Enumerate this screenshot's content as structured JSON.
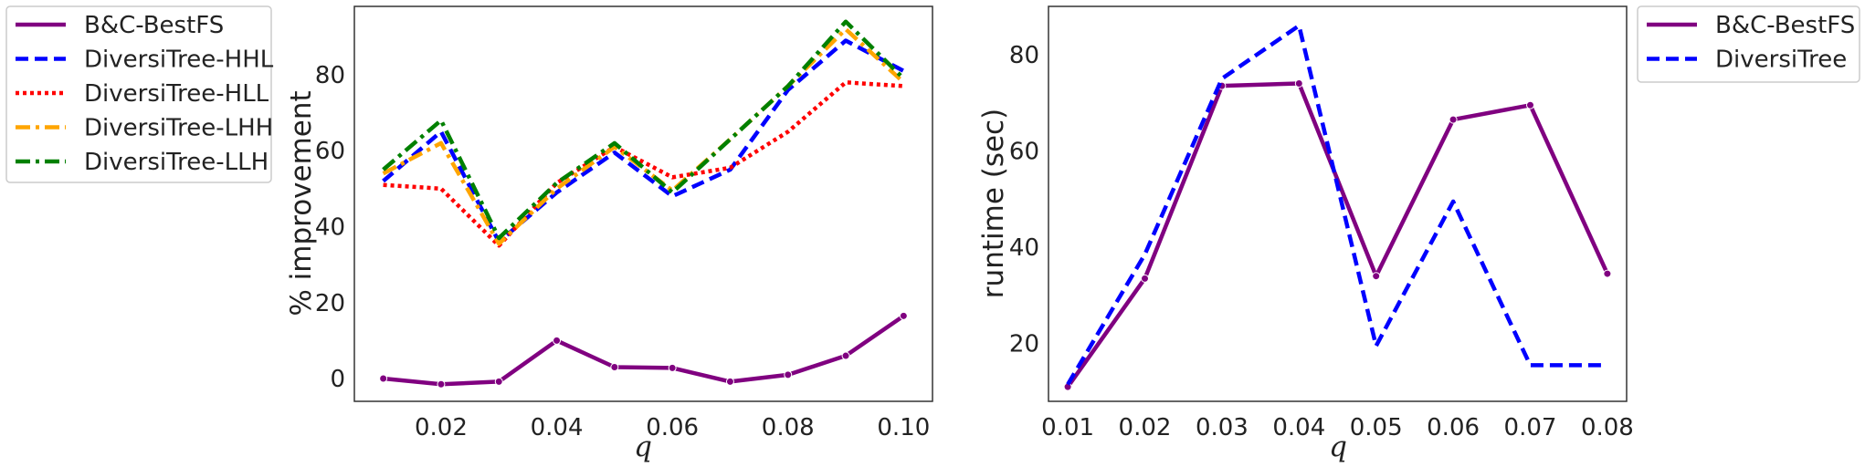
{
  "chart_data": [
    {
      "type": "line",
      "title": "",
      "xlabel": "q",
      "ylabel": "% improvement",
      "xlim": [
        0.005,
        0.105
      ],
      "ylim": [
        -6,
        98
      ],
      "xticks": [
        "0.02",
        "0.04",
        "0.06",
        "0.08",
        "0.10"
      ],
      "xtick_values": [
        0.02,
        0.04,
        0.06,
        0.08,
        0.1
      ],
      "yticks": [
        "0",
        "20",
        "40",
        "60",
        "80"
      ],
      "ytick_values": [
        0,
        20,
        40,
        60,
        80
      ],
      "x": [
        0.01,
        0.02,
        0.03,
        0.04,
        0.05,
        0.06,
        0.07,
        0.08,
        0.09,
        0.1
      ],
      "grid": false,
      "legend_position": "outside-left",
      "series": [
        {
          "name": "B&C-BestFS",
          "color": "#800080",
          "style": "solid",
          "markers": true,
          "values": [
            0,
            -1.5,
            -0.8,
            10,
            3,
            2.8,
            -0.8,
            1,
            6,
            16.5
          ]
        },
        {
          "name": "DiversiTree-HHL",
          "color": "#0000ff",
          "style": "dashed",
          "markers": false,
          "values": [
            52,
            65,
            36,
            49,
            59.5,
            48,
            55,
            76,
            89,
            81
          ]
        },
        {
          "name": "DiversiTree-HLL",
          "color": "#ff0000",
          "style": "dotted",
          "markers": false,
          "values": [
            51,
            50,
            35,
            51.5,
            61,
            53,
            55.5,
            65,
            78,
            77
          ]
        },
        {
          "name": "DiversiTree-LHH",
          "color": "#ffa500",
          "style": "dashdot",
          "markers": false,
          "values": [
            54,
            62,
            35.5,
            50,
            61,
            49.5,
            63,
            77,
            92,
            78
          ]
        },
        {
          "name": "DiversiTree-LLH",
          "color": "#008000",
          "style": "dashdot",
          "markers": false,
          "values": [
            55,
            68,
            37,
            51.5,
            62,
            49,
            63,
            77,
            94,
            79
          ]
        }
      ]
    },
    {
      "type": "line",
      "title": "",
      "xlabel": "q",
      "ylabel": "runtime (sec)",
      "xlim": [
        0.0075,
        0.0825
      ],
      "ylim": [
        8,
        90
      ],
      "xticks": [
        "0.01",
        "0.02",
        "0.03",
        "0.04",
        "0.05",
        "0.06",
        "0.07",
        "0.08"
      ],
      "xtick_values": [
        0.01,
        0.02,
        0.03,
        0.04,
        0.05,
        0.06,
        0.07,
        0.08
      ],
      "yticks": [
        "20",
        "40",
        "60",
        "80"
      ],
      "ytick_values": [
        20,
        40,
        60,
        80
      ],
      "x": [
        0.01,
        0.015,
        0.02,
        0.03,
        0.04,
        0.05,
        0.06,
        0.07,
        0.08
      ],
      "grid": false,
      "legend_position": "outside-right",
      "series": [
        {
          "name": "B&C-BestFS",
          "color": "#800080",
          "style": "solid",
          "markers": true,
          "values": [
            11,
            null,
            33.5,
            73.5,
            74,
            34,
            66.5,
            69.5,
            34.5
          ]
        },
        {
          "name": "DiversiTree",
          "color": "#0000ff",
          "style": "dashed",
          "markers": false,
          "values": [
            11.5,
            null,
            38.5,
            75,
            86,
            19.5,
            49.5,
            15.5,
            15.5
          ]
        }
      ]
    }
  ]
}
